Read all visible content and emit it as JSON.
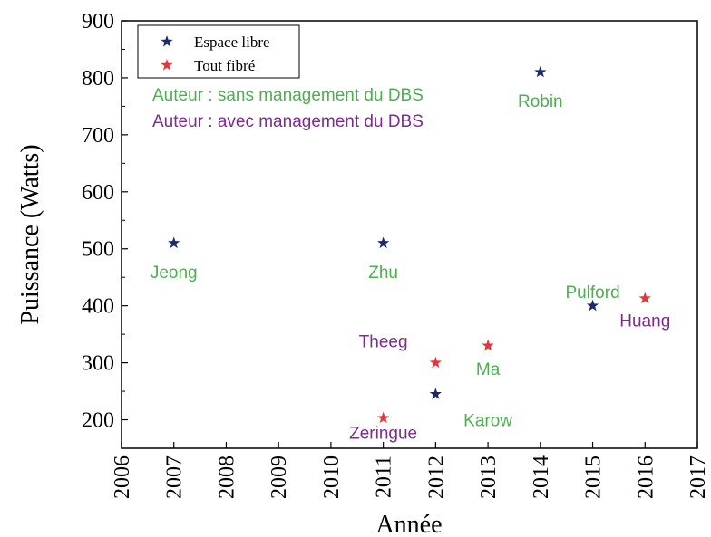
{
  "chart_data": {
    "type": "scatter",
    "xlabel": "Année",
    "ylabel": "Puissance (Watts)",
    "xlim": [
      2006,
      2017
    ],
    "ylim": [
      150,
      900
    ],
    "xticks": [
      "2006",
      "2007",
      "2008",
      "2009",
      "2010",
      "2011",
      "2012",
      "2013",
      "2014",
      "2015",
      "2016",
      "2017"
    ],
    "yticks": [
      "200",
      "300",
      "400",
      "500",
      "600",
      "700",
      "800",
      "900"
    ],
    "grid": false,
    "legend_position": "top-left",
    "series": [
      {
        "name": "Espace libre",
        "color": "#1b2a6b",
        "marker": "star",
        "points": [
          {
            "x": 2007,
            "y": 510
          },
          {
            "x": 2011,
            "y": 510
          },
          {
            "x": 2012,
            "y": 245
          },
          {
            "x": 2014,
            "y": 810
          },
          {
            "x": 2015,
            "y": 400
          }
        ]
      },
      {
        "name": "Tout fibré",
        "color": "#e8343a",
        "marker": "star",
        "points": [
          {
            "x": 2011,
            "y": 203
          },
          {
            "x": 2012,
            "y": 300
          },
          {
            "x": 2013,
            "y": 330
          },
          {
            "x": 2016,
            "y": 413
          }
        ]
      }
    ],
    "legend_notes": [
      {
        "text": "Auteur :  sans management du DBS",
        "color": "#4caf50"
      },
      {
        "text": "Auteur :  avec management du DBS",
        "color": "#7b2d8e"
      }
    ],
    "annotations": [
      {
        "text": "Jeong",
        "x": 2007,
        "y": 460,
        "color": "#4caf50"
      },
      {
        "text": "Zhu",
        "x": 2011,
        "y": 460,
        "color": "#4caf50"
      },
      {
        "text": "Robin",
        "x": 2014,
        "y": 760,
        "color": "#4caf50"
      },
      {
        "text": "Pulford",
        "x": 2015,
        "y": 425,
        "color": "#4caf50"
      },
      {
        "text": "Huang",
        "x": 2016,
        "y": 375,
        "color": "#7b2d8e"
      },
      {
        "text": "Theeg",
        "x": 2011,
        "y": 338,
        "color": "#7b2d8e"
      },
      {
        "text": "Ma",
        "x": 2013,
        "y": 290,
        "color": "#4caf50"
      },
      {
        "text": "Karow",
        "x": 2013,
        "y": 200,
        "color": "#4caf50"
      },
      {
        "text": "Zeringue",
        "x": 2011,
        "y": 178,
        "color": "#7b2d8e"
      }
    ]
  }
}
